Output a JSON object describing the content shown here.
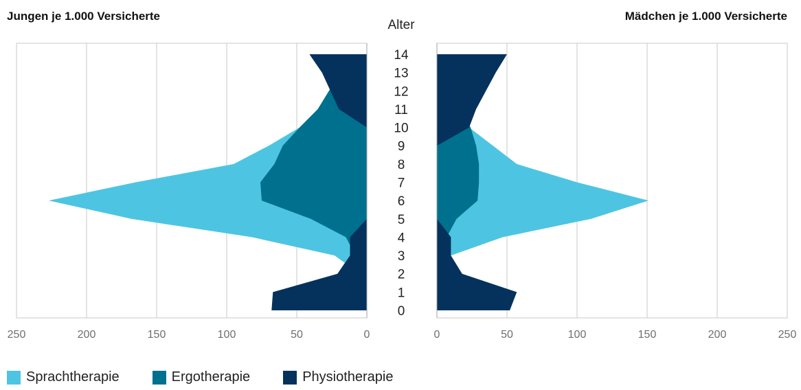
{
  "chart_data": {
    "type": "area",
    "subtype": "population-pyramid",
    "center_label": "Alter",
    "ages": [
      "0",
      "1",
      "2",
      "3",
      "4",
      "5",
      "6",
      "7",
      "8",
      "9",
      "10",
      "11",
      "12",
      "13",
      "14"
    ],
    "colors": {
      "Sprachtherapie": "#4dc5e2",
      "Ergotherapie": "#00708f",
      "Physiotherapie": "#04325c"
    },
    "x_ticks": [
      "250",
      "200",
      "150",
      "100",
      "50",
      "0"
    ],
    "xlim": [
      0,
      250
    ],
    "grid": true,
    "legend_position": "bottom-left",
    "panels": [
      {
        "title": "Jungen je 1.000 Versicherte",
        "side": "left",
        "series": [
          {
            "name": "Sprachtherapie",
            "values": [
              0,
              0,
              5,
              23,
              82,
              168,
              227,
              165,
              95,
              70,
              48,
              30,
              22,
              12,
              10
            ]
          },
          {
            "name": "Ergotherapie",
            "values": [
              0,
              1,
              3,
              8,
              15,
              40,
              75,
              76,
              66,
              60,
              48,
              35,
              27,
              18,
              10
            ]
          },
          {
            "name": "Physiotherapie",
            "values": [
              68,
              67,
              21,
              12,
              12,
              0,
              0,
              0,
              0,
              0,
              0,
              20,
              26,
              32,
              41
            ]
          }
        ]
      },
      {
        "title": "Mädchen je 1.000 Versicherte",
        "side": "right",
        "series": [
          {
            "name": "Sprachtherapie",
            "values": [
              0,
              0,
              2,
              10,
              47,
              110,
              151,
              100,
              57,
              40,
              23,
              17,
              10,
              6,
              6
            ]
          },
          {
            "name": "Ergotherapie",
            "values": [
              0,
              0,
              1,
              4,
              7,
              14,
              29,
              30,
              30,
              28,
              24,
              16,
              10,
              7,
              6
            ]
          },
          {
            "name": "Physiotherapie",
            "values": [
              52,
              57,
              18,
              10,
              10,
              0,
              0,
              0,
              0,
              0,
              23,
              28,
              35,
              42,
              50
            ]
          }
        ]
      }
    ]
  }
}
